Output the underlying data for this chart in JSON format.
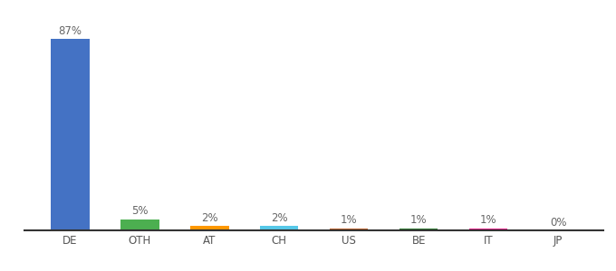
{
  "categories": [
    "DE",
    "OTH",
    "AT",
    "CH",
    "US",
    "BE",
    "IT",
    "JP"
  ],
  "values": [
    87,
    5,
    2,
    2,
    1,
    1,
    1,
    0
  ],
  "labels": [
    "87%",
    "5%",
    "2%",
    "2%",
    "1%",
    "1%",
    "1%",
    "0%"
  ],
  "colors": [
    "#4472c4",
    "#4caf50",
    "#ff9800",
    "#56c8e8",
    "#c0622a",
    "#2e7d32",
    "#e91e8c",
    "#9e9e9e"
  ],
  "background_color": "#ffffff",
  "ylim": [
    0,
    95
  ],
  "label_fontsize": 8.5,
  "tick_fontsize": 8.5,
  "bar_width": 0.55
}
